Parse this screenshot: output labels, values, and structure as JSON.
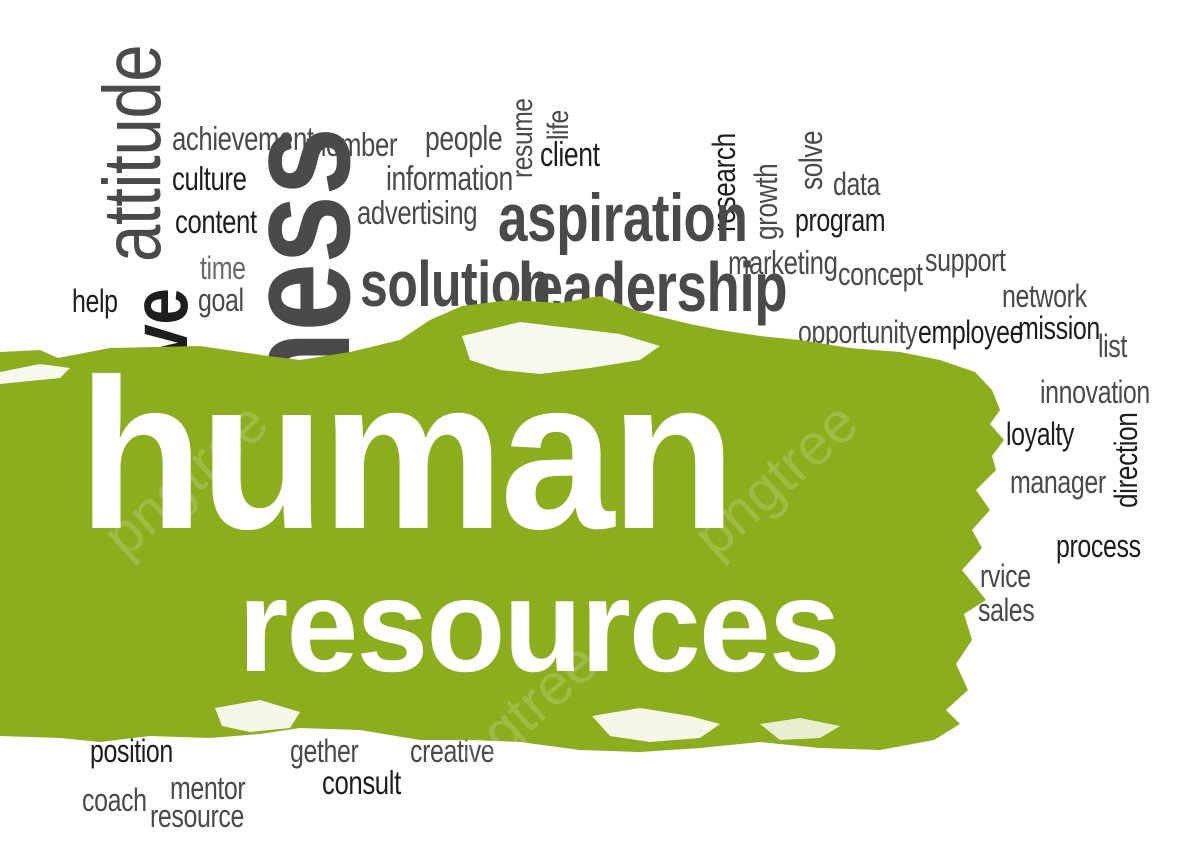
{
  "headline": {
    "line1": "human",
    "line2": "resources"
  },
  "colors": {
    "banner": "#8cad1c",
    "text_dark": "#1e1e1e",
    "text_mid": "#4a4a4a",
    "background": "#ffffff"
  },
  "watermark": "pngtree",
  "words": {
    "attitude": "attitude",
    "tive": "tive",
    "iness": "iness",
    "achievement": "achievement",
    "member": "member",
    "people": "people",
    "resume": "resume",
    "life": "life",
    "client": "client",
    "research": "research",
    "growth": "growth",
    "solve": "solve",
    "data": "data",
    "culture": "culture",
    "information": "information",
    "content": "content",
    "advertising": "advertising",
    "aspiration": "aspiration",
    "program": "program",
    "time": "time",
    "goal": "goal",
    "help": "help",
    "solution": "solution",
    "leadership": "leadership",
    "marketing": "marketing",
    "concept": "concept",
    "support": "support",
    "network": "network",
    "opportunity": "opportunity",
    "employee": "employee",
    "mission": "mission",
    "list": "list",
    "innovation": "innovation",
    "loyalty": "loyalty",
    "direction": "direction",
    "manager": "manager",
    "process": "process",
    "service": "rvice",
    "sales": "sales",
    "position": "position",
    "together": "gether",
    "creative": "creative",
    "consult": "consult",
    "coach": "coach",
    "mentor": "mentor",
    "resource": "resource"
  }
}
